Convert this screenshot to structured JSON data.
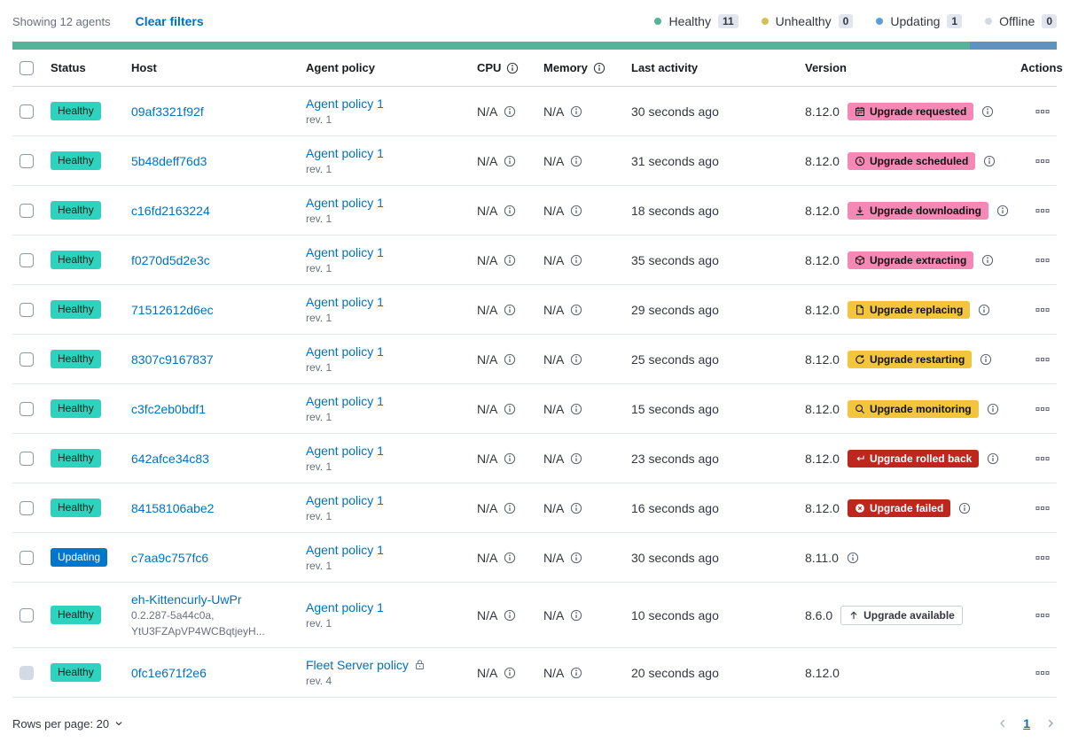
{
  "toolbar": {
    "showing_text": "Showing 12 agents",
    "clear_filters_label": "Clear filters",
    "legend": [
      {
        "label": "Healthy",
        "count": "11",
        "color": "#54B399"
      },
      {
        "label": "Unhealthy",
        "count": "0",
        "color": "#D6BF57"
      },
      {
        "label": "Updating",
        "count": "1",
        "color": "#5B9FD6"
      },
      {
        "label": "Offline",
        "count": "0",
        "color": "#D3DAE6"
      }
    ]
  },
  "health_bar": {
    "segments": [
      {
        "status": "healthy",
        "color": "#54B399",
        "fraction": 0.917
      },
      {
        "status": "updating",
        "color": "#6092C0",
        "fraction": 0.083
      }
    ]
  },
  "colors": {
    "link": "#0071C2",
    "status_colors": {
      "healthy": {
        "bg": "#2DD3BE",
        "fg": "#06231D"
      },
      "updating": {
        "bg": "#0077CC",
        "fg": "#FFFFFF"
      }
    },
    "badge_colors": {
      "pink": {
        "bg": "#F588B5",
        "fg": "#111111"
      },
      "warning": {
        "bg": "#F3C43D",
        "fg": "#111111"
      },
      "danger": {
        "bg": "#BD271E",
        "fg": "#FFFFFF"
      },
      "hollow": {
        "bg": "#FFFFFF",
        "fg": "#343741",
        "border": "#C9CFD9"
      }
    }
  },
  "table": {
    "headers": [
      {
        "label": "Status"
      },
      {
        "label": "Host"
      },
      {
        "label": "Agent policy"
      },
      {
        "label": "CPU",
        "info": true
      },
      {
        "label": "Memory",
        "info": true
      },
      {
        "label": "Last activity"
      },
      {
        "label": "Version"
      },
      {
        "label": "Actions",
        "align": "right"
      }
    ],
    "rows": [
      {
        "status": "healthy",
        "status_label": "Healthy",
        "host": {
          "name": "09af3321f92f",
          "sublines": []
        },
        "policy": {
          "name": "Agent policy 1",
          "revision": "rev. 1",
          "locked": false
        },
        "cpu": "N/A",
        "memory": "N/A",
        "last_activity": "30 seconds ago",
        "version": "8.12.0",
        "upgrade_badge": {
          "label": "Upgrade requested",
          "icon": "calendar-icon",
          "variant": "pink"
        },
        "badge_info": true,
        "version_info": false,
        "checkbox_disabled": false
      },
      {
        "status": "healthy",
        "status_label": "Healthy",
        "host": {
          "name": "5b48deff76d3",
          "sublines": []
        },
        "policy": {
          "name": "Agent policy 1",
          "revision": "rev. 1",
          "locked": false
        },
        "cpu": "N/A",
        "memory": "N/A",
        "last_activity": "31 seconds ago",
        "version": "8.12.0",
        "upgrade_badge": {
          "label": "Upgrade scheduled",
          "icon": "clock-icon",
          "variant": "pink"
        },
        "badge_info": true,
        "version_info": false,
        "checkbox_disabled": false
      },
      {
        "status": "healthy",
        "status_label": "Healthy",
        "host": {
          "name": "c16fd2163224",
          "sublines": []
        },
        "policy": {
          "name": "Agent policy 1",
          "revision": "rev. 1",
          "locked": false
        },
        "cpu": "N/A",
        "memory": "N/A",
        "last_activity": "18 seconds ago",
        "version": "8.12.0",
        "upgrade_badge": {
          "label": "Upgrade downloading",
          "icon": "download-icon",
          "variant": "pink"
        },
        "badge_info": true,
        "version_info": false,
        "checkbox_disabled": false
      },
      {
        "status": "healthy",
        "status_label": "Healthy",
        "host": {
          "name": "f0270d5d2e3c",
          "sublines": []
        },
        "policy": {
          "name": "Agent policy 1",
          "revision": "rev. 1",
          "locked": false
        },
        "cpu": "N/A",
        "memory": "N/A",
        "last_activity": "35 seconds ago",
        "version": "8.12.0",
        "upgrade_badge": {
          "label": "Upgrade extracting",
          "icon": "package-icon",
          "variant": "pink"
        },
        "badge_info": true,
        "version_info": false,
        "checkbox_disabled": false
      },
      {
        "status": "healthy",
        "status_label": "Healthy",
        "host": {
          "name": "71512612d6ec",
          "sublines": []
        },
        "policy": {
          "name": "Agent policy 1",
          "revision": "rev. 1",
          "locked": false
        },
        "cpu": "N/A",
        "memory": "N/A",
        "last_activity": "29 seconds ago",
        "version": "8.12.0",
        "upgrade_badge": {
          "label": "Upgrade replacing",
          "icon": "document-icon",
          "variant": "warning"
        },
        "badge_info": true,
        "version_info": false,
        "checkbox_disabled": false
      },
      {
        "status": "healthy",
        "status_label": "Healthy",
        "host": {
          "name": "8307c9167837",
          "sublines": []
        },
        "policy": {
          "name": "Agent policy 1",
          "revision": "rev. 1",
          "locked": false
        },
        "cpu": "N/A",
        "memory": "N/A",
        "last_activity": "25 seconds ago",
        "version": "8.12.0",
        "upgrade_badge": {
          "label": "Upgrade restarting",
          "icon": "refresh-icon",
          "variant": "warning"
        },
        "badge_info": true,
        "version_info": false,
        "checkbox_disabled": false
      },
      {
        "status": "healthy",
        "status_label": "Healthy",
        "host": {
          "name": "c3fc2eb0bdf1",
          "sublines": []
        },
        "policy": {
          "name": "Agent policy 1",
          "revision": "rev. 1",
          "locked": false
        },
        "cpu": "N/A",
        "memory": "N/A",
        "last_activity": "15 seconds ago",
        "version": "8.12.0",
        "upgrade_badge": {
          "label": "Upgrade monitoring",
          "icon": "inspect-icon",
          "variant": "warning"
        },
        "badge_info": true,
        "version_info": false,
        "checkbox_disabled": false
      },
      {
        "status": "healthy",
        "status_label": "Healthy",
        "host": {
          "name": "642afce34c83",
          "sublines": []
        },
        "policy": {
          "name": "Agent policy 1",
          "revision": "rev. 1",
          "locked": false
        },
        "cpu": "N/A",
        "memory": "N/A",
        "last_activity": "23 seconds ago",
        "version": "8.12.0",
        "upgrade_badge": {
          "label": "Upgrade rolled back",
          "icon": "rollback-icon",
          "variant": "danger"
        },
        "badge_info": true,
        "version_info": false,
        "checkbox_disabled": false
      },
      {
        "status": "healthy",
        "status_label": "Healthy",
        "host": {
          "name": "84158106abe2",
          "sublines": []
        },
        "policy": {
          "name": "Agent policy 1",
          "revision": "rev. 1",
          "locked": false
        },
        "cpu": "N/A",
        "memory": "N/A",
        "last_activity": "16 seconds ago",
        "version": "8.12.0",
        "upgrade_badge": {
          "label": "Upgrade failed",
          "icon": "cross-in-circle-icon",
          "variant": "danger"
        },
        "badge_info": true,
        "version_info": false,
        "checkbox_disabled": false
      },
      {
        "status": "updating",
        "status_label": "Updating",
        "host": {
          "name": "c7aa9c757fc6",
          "sublines": []
        },
        "policy": {
          "name": "Agent policy 1",
          "revision": "rev. 1",
          "locked": false
        },
        "cpu": "N/A",
        "memory": "N/A",
        "last_activity": "30 seconds ago",
        "version": "8.11.0",
        "upgrade_badge": null,
        "badge_info": false,
        "version_info": true,
        "checkbox_disabled": false
      },
      {
        "status": "healthy",
        "status_label": "Healthy",
        "host": {
          "name": "eh-Kittencurly-UwPr",
          "sublines": [
            "0.2.287-5a44c0a,",
            "YtU3FZApVP4WCBqtjeyH..."
          ]
        },
        "policy": {
          "name": "Agent policy 1",
          "revision": "rev. 1",
          "locked": false
        },
        "cpu": "N/A",
        "memory": "N/A",
        "last_activity": "10 seconds ago",
        "version": "8.6.0",
        "upgrade_badge": {
          "label": "Upgrade available",
          "icon": "arrow-up-icon",
          "variant": "hollow"
        },
        "badge_info": false,
        "version_info": false,
        "checkbox_disabled": false
      },
      {
        "status": "healthy",
        "status_label": "Healthy",
        "host": {
          "name": "0fc1e671f2e6",
          "sublines": []
        },
        "policy": {
          "name": "Fleet Server policy",
          "revision": "rev. 4",
          "locked": true
        },
        "cpu": "N/A",
        "memory": "N/A",
        "last_activity": "20 seconds ago",
        "version": "8.12.0",
        "upgrade_badge": null,
        "badge_info": false,
        "version_info": false,
        "checkbox_disabled": true
      }
    ]
  },
  "footer": {
    "rows_per_page_label": "Rows per page: 20",
    "pagination": {
      "current_page": "1"
    }
  }
}
